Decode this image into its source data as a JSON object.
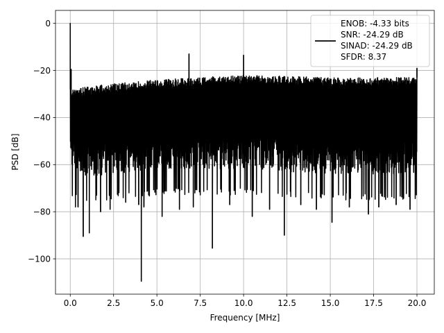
{
  "chart_data": {
    "type": "line",
    "xlabel": "Frequency [MHz]",
    "ylabel": "PSD [dB]",
    "xlim": [
      -0.85,
      21.0
    ],
    "ylim": [
      -115,
      5.5
    ],
    "grid": true,
    "legend_position": "upper-right",
    "xticks": [
      0.0,
      2.5,
      5.0,
      7.5,
      10.0,
      12.5,
      15.0,
      17.5,
      20.0
    ],
    "xtick_labels": [
      "0.0",
      "2.5",
      "5.0",
      "7.5",
      "10.0",
      "12.5",
      "15.0",
      "17.5",
      "20.0"
    ],
    "yticks": [
      0,
      -20,
      -40,
      -60,
      -80,
      -100
    ],
    "ytick_labels": [
      "0",
      "−20",
      "−40",
      "−60",
      "−80",
      "−100"
    ],
    "legend_lines": [
      "ENOB: -4.33 bits",
      "SNR: -24.29 dB",
      "SINAD: -24.29 dB",
      "SFDR: 8.37"
    ],
    "series": [
      {
        "color": "#000000",
        "description": "dense noise floor; upper envelope ~-28 dB at 0.1 MHz rising to ~-22 dB near 10 MHz then ~-23 dB at 20 MHz; lower envelope ~-70 to -75 dB",
        "envelope": {
          "x": [
            0.05,
            1.0,
            2.5,
            5.0,
            7.5,
            10.0,
            12.5,
            15.0,
            17.5,
            20.0
          ],
          "upper": [
            -28,
            -27,
            -25.5,
            -24,
            -23,
            -22,
            -22.5,
            -23,
            -23,
            -23
          ],
          "lower": [
            -71,
            -73,
            -72,
            -70,
            -70,
            -70,
            -71,
            -72,
            -72,
            -72
          ]
        },
        "peaks": [
          {
            "x": 0.0,
            "y": 0
          },
          {
            "x": 0.05,
            "y": -19.5
          },
          {
            "x": 6.85,
            "y": -13
          },
          {
            "x": 10.0,
            "y": -13.5
          },
          {
            "x": 20.0,
            "y": -19
          }
        ],
        "dips": [
          {
            "x": 0.3,
            "y": -78
          },
          {
            "x": 0.45,
            "y": -78
          },
          {
            "x": 0.75,
            "y": -90.5
          },
          {
            "x": 1.1,
            "y": -89
          },
          {
            "x": 1.75,
            "y": -80
          },
          {
            "x": 2.3,
            "y": -79
          },
          {
            "x": 3.2,
            "y": -76
          },
          {
            "x": 3.95,
            "y": -77
          },
          {
            "x": 4.1,
            "y": -109.5
          },
          {
            "x": 4.25,
            "y": -78
          },
          {
            "x": 5.3,
            "y": -82
          },
          {
            "x": 6.3,
            "y": -79
          },
          {
            "x": 7.1,
            "y": -78
          },
          {
            "x": 8.2,
            "y": -95.5
          },
          {
            "x": 9.2,
            "y": -77
          },
          {
            "x": 10.5,
            "y": -82
          },
          {
            "x": 11.5,
            "y": -79
          },
          {
            "x": 12.35,
            "y": -90
          },
          {
            "x": 13.3,
            "y": -77
          },
          {
            "x": 14.2,
            "y": -79
          },
          {
            "x": 15.1,
            "y": -84.5
          },
          {
            "x": 16.1,
            "y": -78
          },
          {
            "x": 17.2,
            "y": -81
          },
          {
            "x": 17.8,
            "y": -78
          },
          {
            "x": 18.8,
            "y": -77
          },
          {
            "x": 19.6,
            "y": -79
          }
        ]
      }
    ]
  }
}
